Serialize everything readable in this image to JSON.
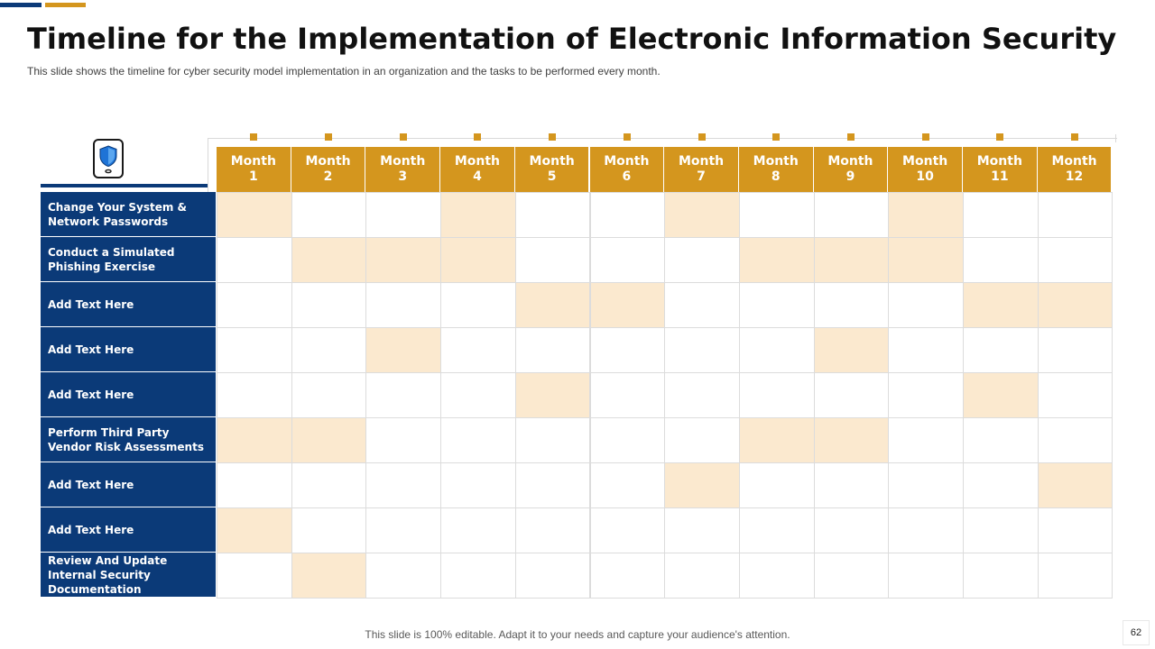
{
  "header": {
    "title": "Timeline for the Implementation of Electronic Information Security",
    "subtitle": "This slide shows the timeline for cyber security model implementation in an organization and the tasks to be performed  every month."
  },
  "icon": {
    "name": "shield-phone-icon"
  },
  "months": [
    {
      "label": "Month",
      "num": "1"
    },
    {
      "label": "Month",
      "num": "2"
    },
    {
      "label": "Month",
      "num": "3"
    },
    {
      "label": "Month",
      "num": "4"
    },
    {
      "label": "Month",
      "num": "5"
    },
    {
      "label": "Month",
      "num": "6"
    },
    {
      "label": "Month",
      "num": "7"
    },
    {
      "label": "Month",
      "num": "8"
    },
    {
      "label": "Month",
      "num": "9"
    },
    {
      "label": "Month",
      "num": "10"
    },
    {
      "label": "Month",
      "num": "11"
    },
    {
      "label": "Month",
      "num": "12"
    }
  ],
  "tasks": [
    {
      "label": "Change Your System & Network Passwords",
      "active_months": [
        1,
        4,
        7,
        10
      ]
    },
    {
      "label": "Conduct a Simulated Phishing Exercise",
      "active_months": [
        2,
        3,
        4,
        8,
        9,
        10
      ]
    },
    {
      "label": "Add Text Here",
      "active_months": [
        5,
        6,
        11,
        12
      ]
    },
    {
      "label": "Add Text Here",
      "active_months": [
        3,
        9
      ]
    },
    {
      "label": "Add Text Here",
      "active_months": [
        5,
        11
      ]
    },
    {
      "label": "Perform Third Party Vendor Risk Assessments",
      "active_months": [
        1,
        2,
        8,
        9
      ]
    },
    {
      "label": "Add Text Here",
      "active_months": [
        7,
        12
      ]
    },
    {
      "label": "Add Text Here",
      "active_months": [
        1
      ]
    },
    {
      "label": "Review And Update Internal Security Documentation",
      "active_months": [
        2
      ]
    }
  ],
  "colors": {
    "navy": "#0b3a78",
    "gold": "#d4961e",
    "highlight": "#fbe9cf"
  },
  "footer": {
    "note": "This slide is 100% editable. Adapt it to your needs and capture your audience's attention.",
    "page_number": "62"
  }
}
